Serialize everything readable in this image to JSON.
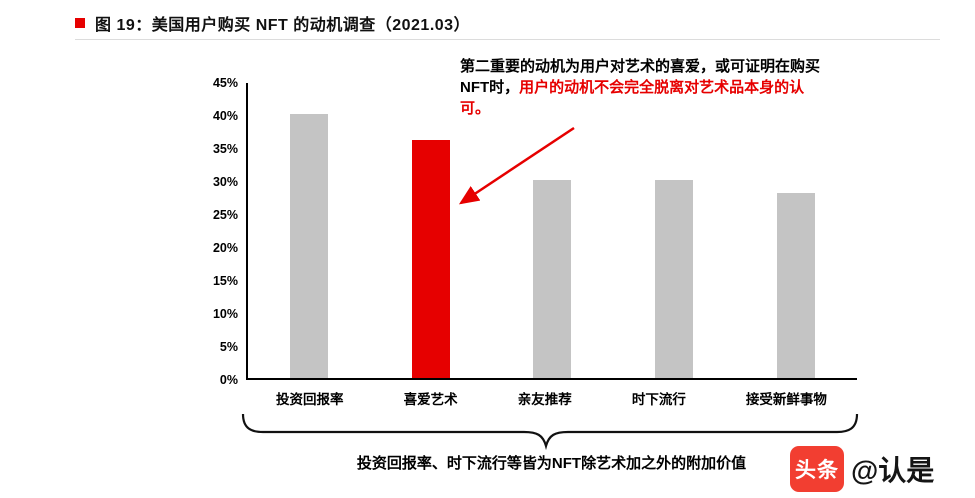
{
  "header": {
    "title": "图 19：美国用户购买 NFT 的动机调查（2021.03）"
  },
  "chart_data": {
    "type": "bar",
    "title": "美国用户购买 NFT 的动机调查（2021.03）",
    "categories": [
      "投资回报率",
      "喜爱艺术",
      "亲友推荐",
      "时下流行",
      "接受新鲜事物"
    ],
    "values": [
      40,
      36,
      30,
      30,
      28
    ],
    "unit": "%",
    "highlight_index": 1,
    "ylim": [
      0,
      45
    ],
    "ytick_step": 5,
    "yticks": [
      "0%",
      "5%",
      "10%",
      "15%",
      "20%",
      "25%",
      "30%",
      "35%",
      "40%",
      "45%"
    ],
    "grid": false,
    "legend": "none",
    "xlabel": "",
    "ylabel": ""
  },
  "annotation": {
    "black_part": "第二重要的动机为用户对艺术的喜爱，或可证明在购买NFT时，",
    "red_part": "用户的动机不会完全脱离对艺术品本身的认可。"
  },
  "caption": {
    "text": "投资回报率、时下流行等皆为NFT除艺术加之外的附加价值"
  },
  "watermark": {
    "logo_text": "头条",
    "handle": "@认是"
  },
  "colors": {
    "accent_red": "#e60000",
    "bar_gray": "#c4c4c4",
    "toutiao_red": "#f23e31",
    "axis_black": "#000000",
    "title_bullet_red": "#e60000"
  }
}
